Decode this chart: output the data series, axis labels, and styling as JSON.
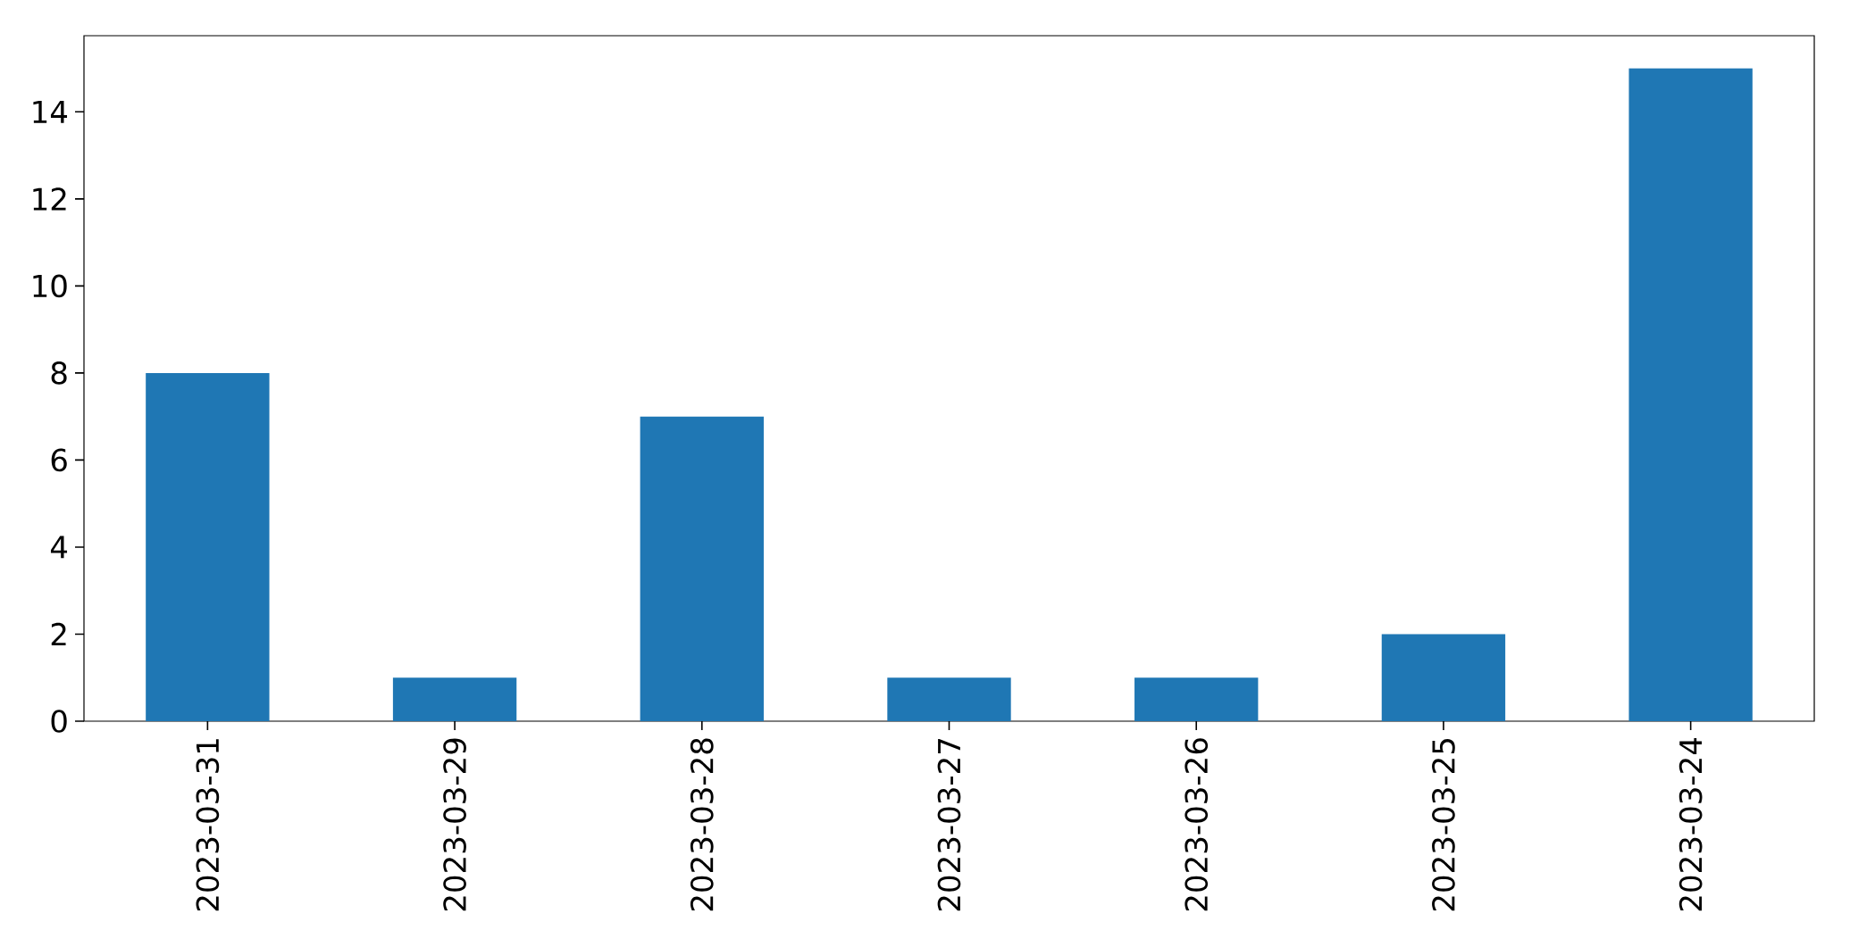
{
  "chart_data": {
    "type": "bar",
    "categories": [
      "2023-03-31",
      "2023-03-29",
      "2023-03-28",
      "2023-03-27",
      "2023-03-26",
      "2023-03-25",
      "2023-03-24"
    ],
    "values": [
      8,
      1,
      7,
      1,
      1,
      2,
      15
    ],
    "color": "#1f77b4",
    "ylim": [
      0,
      15.75
    ],
    "yticks": [
      0,
      2,
      4,
      6,
      8,
      10,
      12,
      14
    ]
  }
}
